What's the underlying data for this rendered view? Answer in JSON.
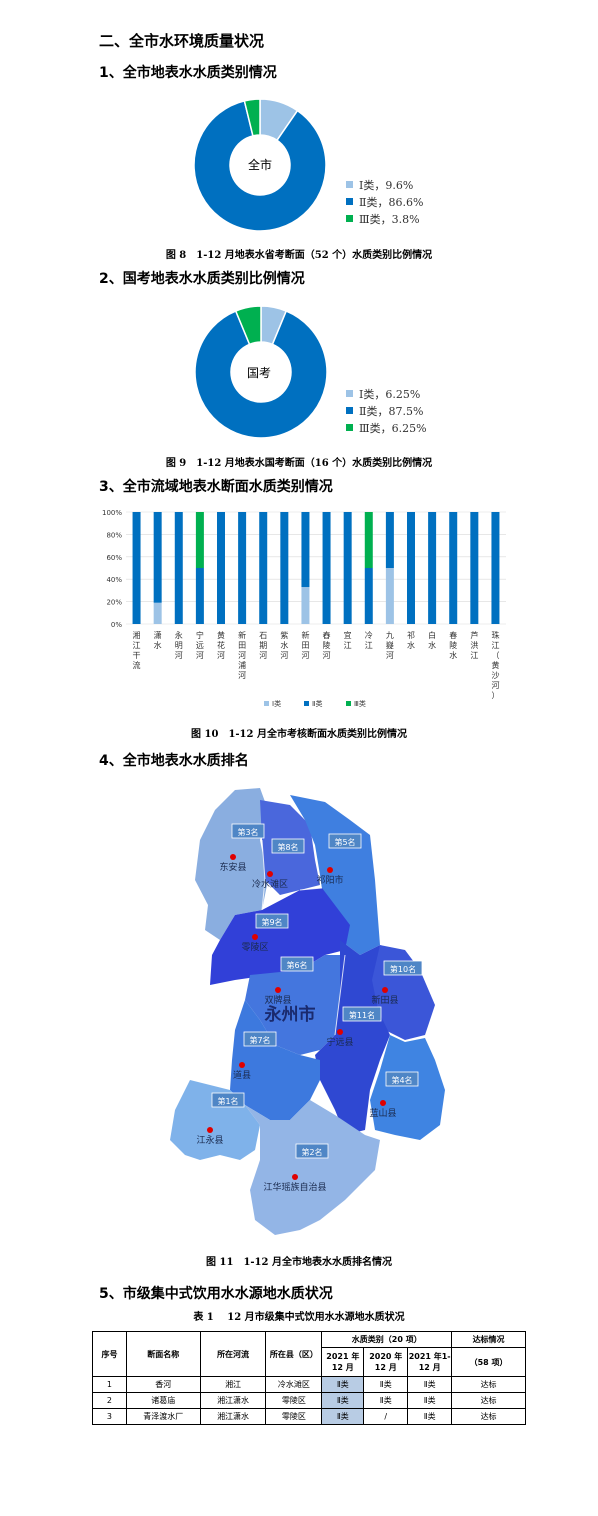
{
  "headings": {
    "section2": "二、全市水环境质量状况",
    "sub1": "1、全市地表水水质类别情况",
    "sub2": "2、国考地表水水质类别比例情况",
    "sub3": "3、全市流域地表水断面水质类别情况",
    "sub4": "4、全市地表水水质排名",
    "sub5": "5、市级集中式饮用水水源地水质状况"
  },
  "captions": {
    "fig8": "图 8　1-12 月地表水省考断面（52 个）水质类别比例情况",
    "fig9": "图 9　1-12 月地表水国考断面（16 个）水质类别比例情况",
    "fig10": "图 10　1-12 月全市考核断面水质类别比例情况",
    "fig11": "图 11　1-12 月全市地表水水质排名情况",
    "table1": "表 1　 12 月市级集中式饮用水水源地水质状况"
  },
  "colors": {
    "class1": "#9dc3e6",
    "class2": "#0070c0",
    "class3": "#00b050"
  },
  "chart_data": [
    {
      "type": "pie",
      "center_label": "全市",
      "slices": [
        {
          "label": "Ⅰ类，9.6%",
          "value": 9.6,
          "color": "#9dc3e6"
        },
        {
          "label": "Ⅱ类，86.6%",
          "value": 86.6,
          "color": "#0070c0"
        },
        {
          "label": "Ⅲ类，3.8%",
          "value": 3.8,
          "color": "#00b050"
        }
      ]
    },
    {
      "type": "pie",
      "center_label": "国考",
      "slices": [
        {
          "label": "Ⅰ类，6.25%",
          "value": 6.25,
          "color": "#9dc3e6"
        },
        {
          "label": "Ⅱ类，87.5%",
          "value": 87.5,
          "color": "#0070c0"
        },
        {
          "label": "Ⅲ类，6.25%",
          "value": 6.25,
          "color": "#00b050"
        }
      ]
    },
    {
      "type": "bar",
      "stacked": true,
      "categories": [
        "湘江干流",
        "潇水",
        "永明河",
        "宁远河",
        "黄花河",
        "新田河浦河",
        "石期河",
        "紫水河",
        "新田河",
        "舂陵河",
        "宜江",
        "冷江",
        "九嶷河",
        "祁水",
        "白水",
        "春陵水",
        "芦洪江",
        "珠江（黄沙河）"
      ],
      "yticks": [
        "0%",
        "20%",
        "40%",
        "60%",
        "80%",
        "100%"
      ],
      "ylim": [
        0,
        100
      ],
      "series": [
        {
          "name": "Ⅰ类",
          "color": "#9dc3e6",
          "values": [
            0,
            19,
            0,
            0,
            0,
            0,
            0,
            0,
            33,
            0,
            0,
            0,
            50,
            0,
            0,
            0,
            0,
            0
          ]
        },
        {
          "name": "Ⅱ类",
          "color": "#0070c0",
          "values": [
            100,
            81,
            100,
            50,
            100,
            100,
            100,
            100,
            67,
            100,
            100,
            50,
            50,
            100,
            100,
            100,
            100,
            100
          ]
        },
        {
          "name": "Ⅲ类",
          "color": "#00b050",
          "values": [
            0,
            0,
            0,
            50,
            0,
            0,
            0,
            0,
            0,
            0,
            0,
            50,
            0,
            0,
            0,
            0,
            0,
            0
          ]
        }
      ]
    }
  ],
  "map": {
    "city": "永州市",
    "counties": [
      {
        "name": "东安县",
        "rank": "第3名"
      },
      {
        "name": "冷水滩区",
        "rank": "第8名"
      },
      {
        "name": "祁阳市",
        "rank": "第5名"
      },
      {
        "name": "零陵区",
        "rank": "第9名"
      },
      {
        "name": "双牌县",
        "rank": "第6名"
      },
      {
        "name": "新田县",
        "rank": "第10名"
      },
      {
        "name": "宁远县",
        "rank": "第11名"
      },
      {
        "name": "道县",
        "rank": "第7名"
      },
      {
        "name": "蓝山县",
        "rank": "第4名"
      },
      {
        "name": "江永县",
        "rank": "第1名"
      },
      {
        "name": "江华瑶族自治县",
        "rank": "第2名"
      }
    ]
  },
  "table": {
    "headers": {
      "no": "序号",
      "name": "断面名称",
      "river": "所在河流",
      "county": "所在县（区）",
      "quality": "水质类别（20 项）",
      "y2021": "2021 年12 月",
      "y2020": "2020 年12 月",
      "y2021full": "2021 年1-12 月",
      "status": "达标情况",
      "status_sub": "（58 项）"
    },
    "rows": [
      {
        "no": "1",
        "name": "香河",
        "river": "湘江",
        "county": "冷水滩区",
        "q2021": "Ⅱ类",
        "q2020": "Ⅱ类",
        "qyear": "Ⅱ类",
        "status": "达标"
      },
      {
        "no": "2",
        "name": "诸葛庙",
        "river": "湘江潇水",
        "county": "零陵区",
        "q2021": "Ⅱ类",
        "q2020": "Ⅱ类",
        "qyear": "Ⅱ类",
        "status": "达标"
      },
      {
        "no": "3",
        "name": "青泽渡水厂",
        "river": "湘江潇水",
        "county": "零陵区",
        "q2021": "Ⅱ类",
        "q2020": "/",
        "qyear": "Ⅱ类",
        "status": "达标"
      }
    ]
  }
}
